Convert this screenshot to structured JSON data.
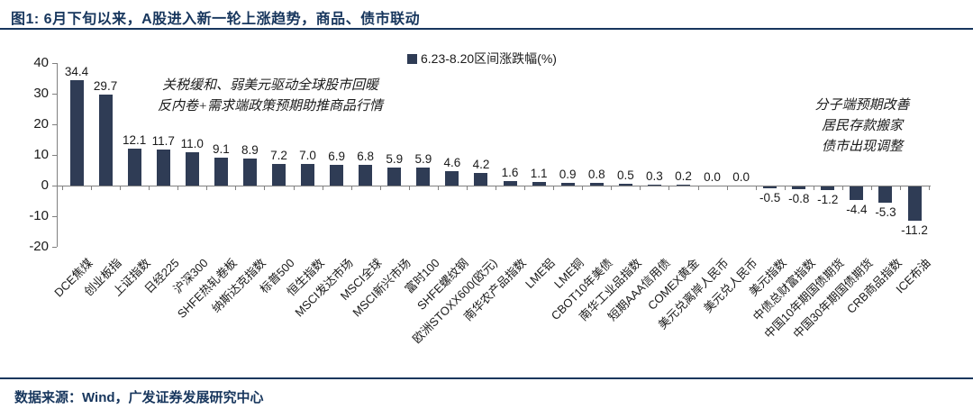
{
  "header": {
    "title": "图1:  6月下旬以来，A股进入新一轮上涨趋势，商品、债市联动"
  },
  "footer": {
    "source": "数据来源：Wind，广发证券发展研究中心"
  },
  "legend": {
    "label": "6.23-8.20区间涨跌幅(%)"
  },
  "annotations": {
    "left": [
      "关税缓和、弱美元驱动全球股市回暖",
      "反内卷+需求端政策预期助推商品行情"
    ],
    "right": [
      "分子端预期改善",
      "居民存款搬家",
      "债市出现调整"
    ]
  },
  "colors": {
    "bar": "#2F3C55",
    "accent": "#17365D",
    "axis": "#808080"
  },
  "chart_data": {
    "type": "bar",
    "title": "6.23-8.20区间涨跌幅(%)",
    "categories": [
      "DCE焦煤",
      "创业板指",
      "上证指数",
      "日经225",
      "沪深300",
      "SHFE热轧卷板",
      "纳斯达克指数",
      "标普500",
      "恒生指数",
      "MSCI发达市场",
      "MSCI全球",
      "MSCI新兴市场",
      "富时100",
      "SHFE螺纹钢",
      "欧洲STOXX600(欧元)",
      "南华农产品指数",
      "LME铝",
      "LME铜",
      "CBOT10年美债",
      "南华工业品指数",
      "短期AAA信用债",
      "COMEX黄金",
      "美元兑离岸人民币",
      "美元兑人民币",
      "美元指数",
      "中债总财富指数",
      "中国10年期国债期货",
      "中国30年期国债期货",
      "CRB商品指数",
      "ICE布油"
    ],
    "values": [
      34.4,
      29.7,
      12.1,
      11.7,
      11.0,
      9.1,
      8.9,
      7.2,
      7.0,
      6.9,
      6.8,
      5.9,
      5.9,
      4.6,
      4.2,
      1.6,
      1.1,
      0.9,
      0.8,
      0.5,
      0.3,
      0.2,
      0.0,
      0.0,
      -0.5,
      -0.8,
      -1.2,
      -4.4,
      -5.3,
      -11.2
    ],
    "xlabel": "",
    "ylabel": "",
    "ylim": [
      -20,
      40
    ],
    "y_ticks": [
      40,
      30,
      20,
      10,
      0,
      -10,
      -20
    ],
    "grid": false,
    "legend_position": "top-center"
  }
}
